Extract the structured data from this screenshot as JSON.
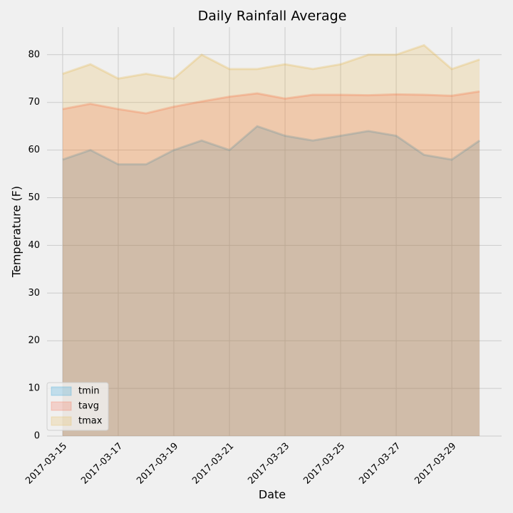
{
  "chart_data": {
    "type": "area",
    "title": "Daily Rainfall Average",
    "xlabel": "Date",
    "ylabel": "Temperature (F)",
    "x": [
      "2017-03-15",
      "2017-03-16",
      "2017-03-17",
      "2017-03-18",
      "2017-03-19",
      "2017-03-20",
      "2017-03-21",
      "2017-03-22",
      "2017-03-23",
      "2017-03-24",
      "2017-03-25",
      "2017-03-26",
      "2017-03-27",
      "2017-03-28",
      "2017-03-29",
      "2017-03-30"
    ],
    "series": [
      {
        "name": "tmin",
        "color": "#008fd5",
        "values": [
          58,
          60,
          57,
          57,
          60,
          62,
          60,
          65,
          63,
          62,
          63,
          64,
          63,
          59,
          58,
          62
        ]
      },
      {
        "name": "tavg",
        "color": "#fc4f30",
        "values": [
          68.6,
          69.7,
          68.6,
          67.7,
          69.1,
          70.2,
          71.2,
          71.9,
          70.8,
          71.6,
          71.6,
          71.5,
          71.7,
          71.6,
          71.4,
          72.3
        ]
      },
      {
        "name": "tmax",
        "color": "#e5ae38",
        "values": [
          76,
          78,
          75,
          76,
          75,
          80,
          77,
          77,
          78,
          77,
          78,
          80,
          80,
          82,
          77,
          79
        ]
      }
    ],
    "xlim": [
      "2017-03-14T10:30Z",
      "2017-03-30T19:00Z"
    ],
    "xticks": [
      "2017-03-15",
      "2017-03-17",
      "2017-03-19",
      "2017-03-21",
      "2017-03-23",
      "2017-03-25",
      "2017-03-27",
      "2017-03-29"
    ],
    "ylim": [
      0,
      85.8
    ],
    "yticks": [
      0,
      10,
      20,
      30,
      40,
      50,
      60,
      70,
      80
    ],
    "grid": true,
    "legend": "lower left"
  }
}
